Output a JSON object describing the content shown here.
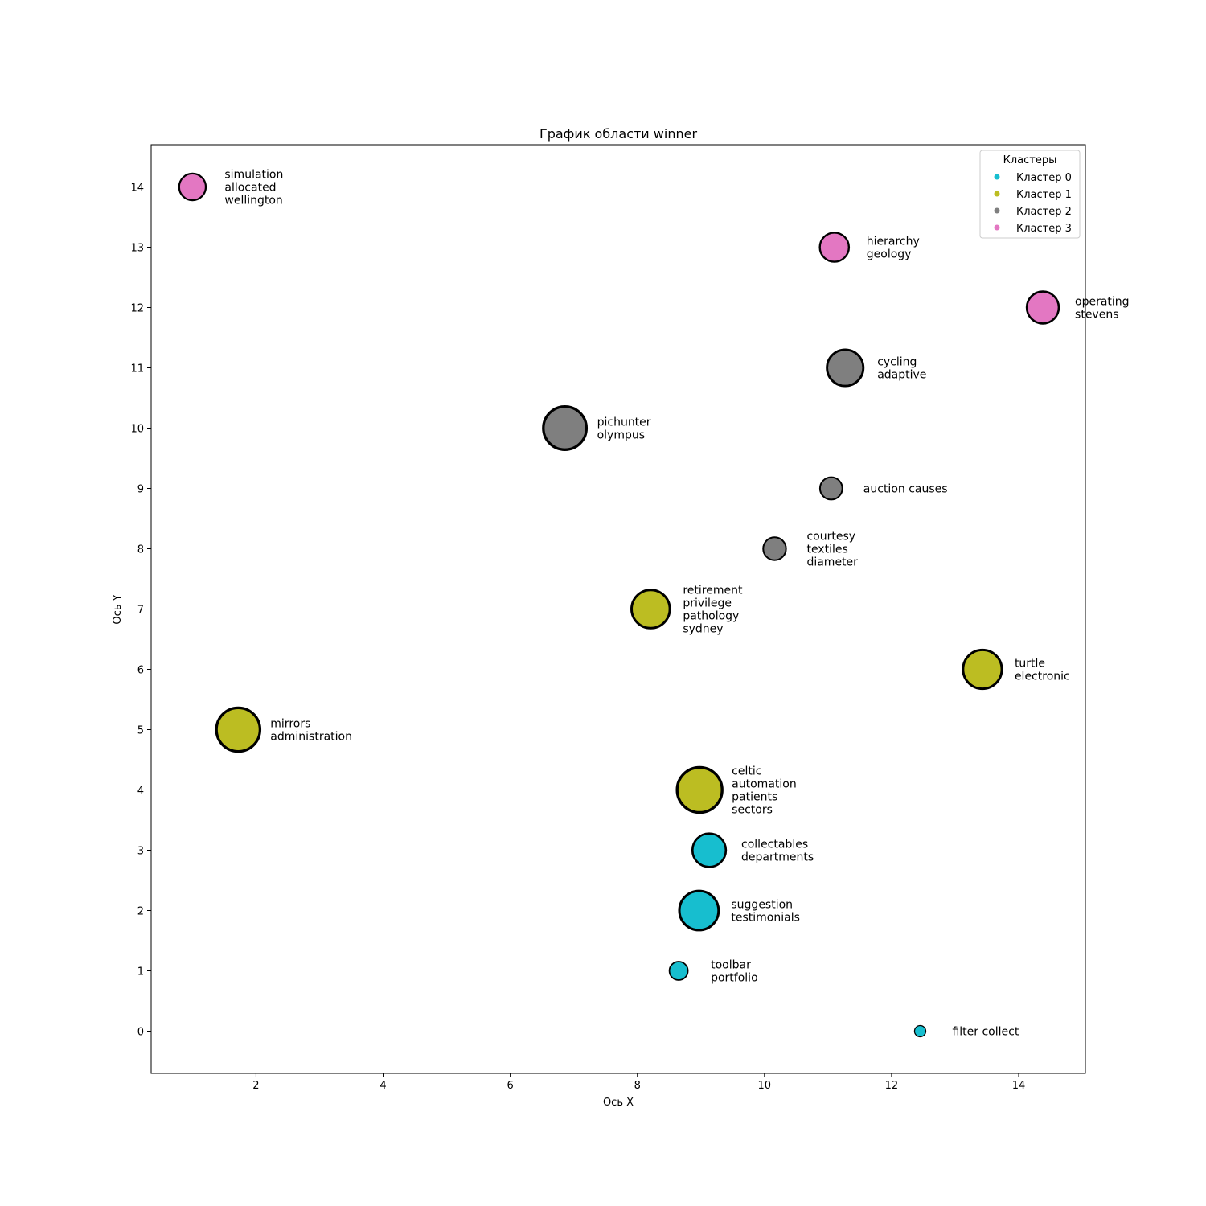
{
  "chart_data": {
    "type": "scatter",
    "title": "График области winner",
    "xlabel": "Ось X",
    "ylabel": "Ось Y",
    "xlim": [
      0.35,
      15.05
    ],
    "ylim": [
      -0.7,
      14.7
    ],
    "xticks": [
      2,
      4,
      6,
      8,
      10,
      12,
      14
    ],
    "yticks": [
      0,
      1,
      2,
      3,
      4,
      5,
      6,
      7,
      8,
      9,
      10,
      11,
      12,
      13,
      14
    ],
    "grid": false,
    "legend": {
      "title": "Кластеры",
      "placement": "top-right",
      "entries": [
        {
          "label": "Кластер 0",
          "color": "#17becf"
        },
        {
          "label": "Кластер 1",
          "color": "#bcbd22"
        },
        {
          "label": "Кластер 2",
          "color": "#7f7f7f"
        },
        {
          "label": "Кластер 3",
          "color": "#e377c2"
        }
      ]
    },
    "series": [
      {
        "cluster": 0,
        "color": "#17becf",
        "points": [
          {
            "x": 12.45,
            "y": 0,
            "size": 0.1,
            "label": [
              "filter collect"
            ]
          },
          {
            "x": 8.65,
            "y": 1,
            "size": 0.25,
            "label": [
              "toolbar",
              "portfolio"
            ]
          },
          {
            "x": 8.97,
            "y": 2,
            "size": 0.68,
            "label": [
              "suggestion",
              "testimonials"
            ]
          },
          {
            "x": 9.13,
            "y": 3,
            "size": 0.56,
            "label": [
              "collectables",
              "departments"
            ]
          }
        ]
      },
      {
        "cluster": 1,
        "color": "#bcbd22",
        "points": [
          {
            "x": 8.98,
            "y": 4,
            "size": 0.8,
            "label": [
              "celtic",
              "automation",
              "patients",
              "sectors"
            ]
          },
          {
            "x": 1.72,
            "y": 5,
            "size": 0.77,
            "label": [
              "mirrors",
              "administration"
            ]
          },
          {
            "x": 13.43,
            "y": 6,
            "size": 0.67,
            "label": [
              "turtle",
              "electronic"
            ]
          },
          {
            "x": 8.21,
            "y": 7,
            "size": 0.66,
            "label": [
              "retirement",
              "privilege",
              "pathology",
              "sydney"
            ]
          }
        ]
      },
      {
        "cluster": 2,
        "color": "#7f7f7f",
        "points": [
          {
            "x": 10.16,
            "y": 8,
            "size": 0.34,
            "label": [
              "courtesy",
              "textiles",
              "diameter"
            ]
          },
          {
            "x": 11.05,
            "y": 9,
            "size": 0.33,
            "label": [
              "auction causes"
            ]
          },
          {
            "x": 6.86,
            "y": 10,
            "size": 0.76,
            "label": [
              "pichunter",
              "olympus"
            ]
          },
          {
            "x": 11.27,
            "y": 11,
            "size": 0.62,
            "label": [
              "cycling",
              "adaptive"
            ]
          }
        ]
      },
      {
        "cluster": 3,
        "color": "#e377c2",
        "points": [
          {
            "x": 14.38,
            "y": 12,
            "size": 0.53,
            "label": [
              "operating",
              "stevens"
            ]
          },
          {
            "x": 11.1,
            "y": 13,
            "size": 0.47,
            "label": [
              "hierarchy",
              "geology"
            ]
          },
          {
            "x": 1.0,
            "y": 14,
            "size": 0.42,
            "label": [
              "simulation",
              "allocated",
              "wellington"
            ]
          }
        ]
      }
    ]
  }
}
